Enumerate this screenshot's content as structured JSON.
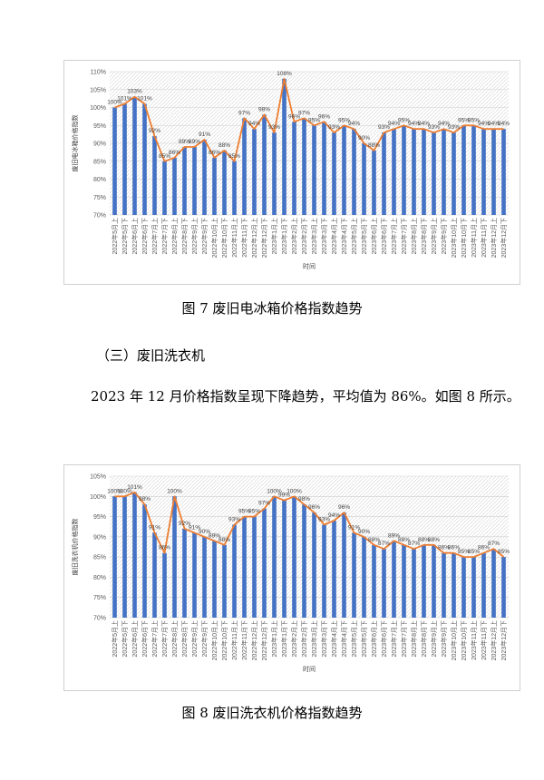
{
  "figure7": {
    "caption": "图 7  废旧电冰箱价格指数趋势",
    "chart_data": {
      "type": "bar",
      "title": "",
      "xlabel": "时间",
      "ylabel": "废旧电冰箱价格指数",
      "ylim": [
        70,
        110
      ],
      "yticks": [
        "70%",
        "75%",
        "80%",
        "85%",
        "90%",
        "95%",
        "100%",
        "105%",
        "110%"
      ],
      "grid": true,
      "overlay": "line",
      "categories": [
        "2022年5月上",
        "2022年5月下",
        "2022年6月上",
        "2022年6月下",
        "2022年7月上",
        "2022年7月下",
        "2022年8月上",
        "2022年8月下",
        "2022年9月上",
        "2022年9月下",
        "2022年10月上",
        "2022年10月下",
        "2022年11月上",
        "2022年11月下",
        "2022年12月上",
        "2022年12月下",
        "2023年1月上",
        "2023年1月下",
        "2023年2月上",
        "2023年2月下",
        "2023年3月上",
        "2023年3月下",
        "2023年4月上",
        "2023年4月下",
        "2023年5月上",
        "2023年5月下",
        "2023年6月上",
        "2023年6月下",
        "2023年7月上",
        "2023年7月下",
        "2023年8月上",
        "2023年8月下",
        "2023年9月上",
        "2023年9月下",
        "2023年10月上",
        "2023年10月下",
        "2023年11月上",
        "2023年11月下",
        "2023年12月上",
        "2023年12月下"
      ],
      "values": [
        100,
        101,
        103,
        101,
        92,
        85,
        86,
        89,
        89,
        91,
        86,
        88,
        85,
        97,
        94,
        98,
        93,
        108,
        96,
        97,
        95,
        96,
        93,
        95,
        94,
        90,
        88,
        93,
        94,
        95,
        94,
        94,
        93,
        94,
        93,
        95,
        95,
        94,
        94,
        94
      ],
      "data_labels": [
        "100%",
        "101%",
        "103%",
        "101%",
        "92%",
        "85%",
        "86%",
        "89%",
        "89%",
        "91%",
        "86%",
        "88%",
        "85%",
        "97%",
        "94%",
        "98%",
        "93%",
        "108%",
        "96%",
        "97%",
        "95%",
        "96%",
        "93%",
        "95%",
        "94%",
        "90%",
        "88%",
        "93%",
        "94%",
        "95%",
        "94%",
        "94%",
        "93%",
        "94%",
        "93%",
        "95%",
        "95%",
        "94%",
        "94%",
        "94%"
      ],
      "colors": {
        "bar": "#4472C4",
        "line": "#ED7D31"
      }
    }
  },
  "section": {
    "heading": "（三）废旧洗衣机",
    "paragraph": "2023 年 12 月价格指数呈现下降趋势，平均值为 86%。如图 8 所示。"
  },
  "figure8": {
    "caption": "图 8  废旧洗衣机价格指数趋势",
    "chart_data": {
      "type": "bar",
      "title": "",
      "xlabel": "时间",
      "ylabel": "废旧洗衣机价格指数",
      "ylim": [
        70,
        105
      ],
      "yticks": [
        "70%",
        "75%",
        "80%",
        "85%",
        "90%",
        "95%",
        "100%",
        "105%"
      ],
      "grid": true,
      "overlay": "line",
      "categories": [
        "2022年5月上",
        "2022年5月下",
        "2022年6月上",
        "2022年6月下",
        "2022年7月上",
        "2022年7月下",
        "2022年8月上",
        "2022年8月下",
        "2022年9月上",
        "2022年9月下",
        "2022年10月上",
        "2022年10月下",
        "2022年11月上",
        "2022年11月下",
        "2022年12月上",
        "2022年12月下",
        "2023年1月上",
        "2023年1月下",
        "2023年2月上",
        "2023年2月下",
        "2023年3月上",
        "2023年3月下",
        "2023年4月上",
        "2023年4月下",
        "2023年5月上",
        "2023年5月下",
        "2023年6月上",
        "2023年6月下",
        "2023年7月上",
        "2023年7月下",
        "2023年8月上",
        "2023年8月下",
        "2023年9月上",
        "2023年9月下",
        "2023年10月上",
        "2023年10月下",
        "2023年11月上",
        "2023年11月下",
        "2023年12月上",
        "2023年12月下"
      ],
      "values": [
        100,
        100,
        101,
        98,
        91,
        86,
        100,
        92,
        91,
        90,
        89,
        88,
        93,
        95,
        95,
        97,
        100,
        99,
        100,
        98,
        96,
        93,
        94,
        96,
        91,
        90,
        88,
        87,
        89,
        88,
        87,
        88,
        88,
        86,
        86,
        85,
        85,
        86,
        87,
        85
      ],
      "data_labels": [
        "100%",
        "100%",
        "101%",
        "98%",
        "91%",
        "86%",
        "100%",
        "92%",
        "91%",
        "90%",
        "89%",
        "88%",
        "93%",
        "95%",
        "95%",
        "97%",
        "100%",
        "99%",
        "100%",
        "98%",
        "96%",
        "93%",
        "94%",
        "96%",
        "91%",
        "90%",
        "88%",
        "87%",
        "89%",
        "88%",
        "87%",
        "88%",
        "88%",
        "86%",
        "86%",
        "85%",
        "85%",
        "86%",
        "87%",
        "85%"
      ],
      "colors": {
        "bar": "#4472C4",
        "line": "#ED7D31"
      }
    }
  }
}
